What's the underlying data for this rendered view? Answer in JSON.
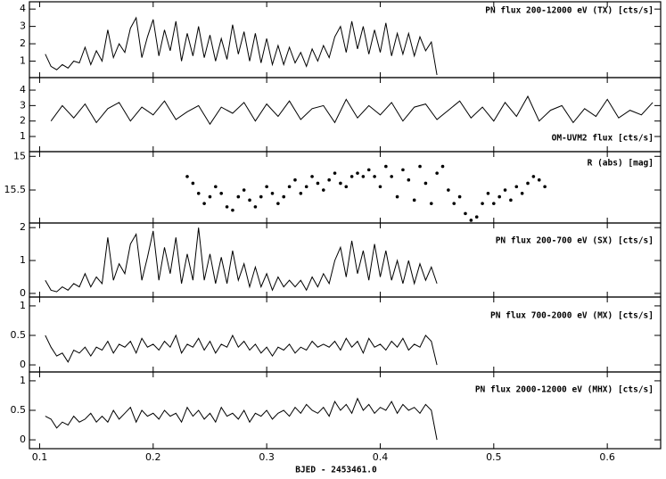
{
  "chart_data": [
    {
      "type": "line",
      "title": "PN flux 200-12000 eV (TX) [cts/s]",
      "color": "#000000",
      "xlim": [
        0.091,
        0.647
      ],
      "ylim": [
        0.05,
        4.42
      ],
      "yticks": [
        1,
        2,
        3,
        4
      ],
      "x": [
        0.105,
        0.11,
        0.115,
        0.12,
        0.125,
        0.13,
        0.135,
        0.14,
        0.145,
        0.15,
        0.155,
        0.16,
        0.165,
        0.17,
        0.175,
        0.18,
        0.185,
        0.19,
        0.195,
        0.2,
        0.205,
        0.21,
        0.215,
        0.22,
        0.225,
        0.23,
        0.235,
        0.24,
        0.245,
        0.25,
        0.255,
        0.26,
        0.265,
        0.27,
        0.275,
        0.28,
        0.285,
        0.29,
        0.295,
        0.3,
        0.305,
        0.31,
        0.315,
        0.32,
        0.325,
        0.33,
        0.335,
        0.34,
        0.345,
        0.35,
        0.355,
        0.36,
        0.365,
        0.37,
        0.375,
        0.38,
        0.385,
        0.39,
        0.395,
        0.4,
        0.405,
        0.41,
        0.415,
        0.42,
        0.425,
        0.43,
        0.435,
        0.44,
        0.445,
        0.45
      ],
      "values": [
        1.4,
        0.7,
        0.5,
        0.8,
        0.6,
        1.0,
        0.9,
        1.8,
        0.8,
        1.6,
        1.0,
        2.8,
        1.2,
        2.0,
        1.5,
        2.9,
        3.5,
        1.2,
        2.4,
        3.4,
        1.3,
        2.8,
        1.6,
        3.3,
        1.0,
        2.6,
        1.3,
        3.0,
        1.2,
        2.5,
        1.0,
        2.3,
        1.1,
        3.1,
        1.4,
        2.7,
        1.0,
        2.6,
        0.9,
        2.3,
        0.8,
        1.9,
        0.8,
        1.8,
        0.9,
        1.5,
        0.7,
        1.7,
        1.0,
        1.9,
        1.2,
        2.4,
        3.0,
        1.5,
        3.3,
        1.7,
        3.0,
        1.4,
        2.8,
        1.5,
        3.2,
        1.3,
        2.6,
        1.4,
        2.6,
        1.3,
        2.4,
        1.6,
        2.1,
        0.2
      ]
    },
    {
      "type": "line",
      "title": "OM-UVM2 flux [cts/s]",
      "color": "#000000",
      "xlim": [
        0.091,
        0.647
      ],
      "ylim": [
        0.02,
        4.81
      ],
      "yticks": [
        1,
        2,
        3,
        4
      ],
      "x": [
        0.11,
        0.12,
        0.13,
        0.14,
        0.15,
        0.16,
        0.17,
        0.18,
        0.19,
        0.2,
        0.21,
        0.22,
        0.23,
        0.24,
        0.25,
        0.26,
        0.27,
        0.28,
        0.29,
        0.3,
        0.31,
        0.32,
        0.33,
        0.34,
        0.35,
        0.36,
        0.37,
        0.38,
        0.39,
        0.4,
        0.41,
        0.42,
        0.43,
        0.44,
        0.45,
        0.46,
        0.47,
        0.48,
        0.49,
        0.5,
        0.51,
        0.52,
        0.53,
        0.54,
        0.55,
        0.56,
        0.57,
        0.58,
        0.59,
        0.6,
        0.61,
        0.62,
        0.63,
        0.64
      ],
      "values": [
        2.0,
        3.0,
        2.2,
        3.1,
        1.9,
        2.8,
        3.2,
        2.0,
        2.9,
        2.4,
        3.3,
        2.1,
        2.6,
        3.0,
        1.8,
        2.9,
        2.5,
        3.2,
        2.0,
        3.1,
        2.3,
        3.3,
        2.1,
        2.8,
        3.0,
        1.9,
        3.4,
        2.2,
        3.0,
        2.4,
        3.2,
        2.0,
        2.9,
        3.1,
        2.1,
        2.7,
        3.3,
        2.2,
        2.9,
        2.0,
        3.2,
        2.3,
        3.6,
        2.0,
        2.7,
        3.0,
        1.9,
        2.8,
        2.3,
        3.4,
        2.2,
        2.7,
        2.4,
        3.2
      ]
    },
    {
      "type": "scatter",
      "title": "R (abs) [mag]",
      "color": "#000000",
      "xlim": [
        0.091,
        0.647
      ],
      "ylim": [
        15.99,
        14.93
      ],
      "yticks": [
        15,
        15.5
      ],
      "x": [
        0.23,
        0.235,
        0.24,
        0.245,
        0.25,
        0.255,
        0.26,
        0.265,
        0.27,
        0.275,
        0.28,
        0.285,
        0.29,
        0.295,
        0.3,
        0.305,
        0.31,
        0.315,
        0.32,
        0.325,
        0.33,
        0.335,
        0.34,
        0.345,
        0.35,
        0.355,
        0.36,
        0.365,
        0.37,
        0.375,
        0.38,
        0.385,
        0.39,
        0.395,
        0.4,
        0.405,
        0.41,
        0.415,
        0.42,
        0.425,
        0.43,
        0.435,
        0.44,
        0.445,
        0.45,
        0.455,
        0.46,
        0.465,
        0.47,
        0.475,
        0.48,
        0.485,
        0.49,
        0.495,
        0.5,
        0.505,
        0.51,
        0.515,
        0.52,
        0.525,
        0.53,
        0.535,
        0.54,
        0.545
      ],
      "values": [
        15.3,
        15.4,
        15.55,
        15.7,
        15.6,
        15.45,
        15.55,
        15.75,
        15.8,
        15.6,
        15.5,
        15.65,
        15.75,
        15.6,
        15.45,
        15.55,
        15.7,
        15.6,
        15.45,
        15.35,
        15.55,
        15.45,
        15.3,
        15.4,
        15.5,
        15.35,
        15.25,
        15.4,
        15.45,
        15.3,
        15.25,
        15.3,
        15.2,
        15.3,
        15.45,
        15.15,
        15.3,
        15.6,
        15.2,
        15.35,
        15.65,
        15.15,
        15.4,
        15.7,
        15.25,
        15.15,
        15.5,
        15.7,
        15.6,
        15.85,
        15.95,
        15.9,
        15.7,
        15.55,
        15.7,
        15.6,
        15.5,
        15.65,
        15.45,
        15.55,
        15.4,
        15.3,
        15.35,
        15.45
      ]
    },
    {
      "type": "line",
      "title": "PN flux 200-700 eV (SX) [cts/s]",
      "color": "#000000",
      "xlim": [
        0.091,
        0.647
      ],
      "ylim": [
        -0.11,
        2.14
      ],
      "yticks": [
        0,
        1,
        2
      ],
      "x": [
        0.105,
        0.11,
        0.115,
        0.12,
        0.125,
        0.13,
        0.135,
        0.14,
        0.145,
        0.15,
        0.155,
        0.16,
        0.165,
        0.17,
        0.175,
        0.18,
        0.185,
        0.19,
        0.195,
        0.2,
        0.205,
        0.21,
        0.215,
        0.22,
        0.225,
        0.23,
        0.235,
        0.24,
        0.245,
        0.25,
        0.255,
        0.26,
        0.265,
        0.27,
        0.275,
        0.28,
        0.285,
        0.29,
        0.295,
        0.3,
        0.305,
        0.31,
        0.315,
        0.32,
        0.325,
        0.33,
        0.335,
        0.34,
        0.345,
        0.35,
        0.355,
        0.36,
        0.365,
        0.37,
        0.375,
        0.38,
        0.385,
        0.39,
        0.395,
        0.4,
        0.405,
        0.41,
        0.415,
        0.42,
        0.425,
        0.43,
        0.435,
        0.44,
        0.445,
        0.45
      ],
      "values": [
        0.4,
        0.1,
        0.05,
        0.2,
        0.1,
        0.3,
        0.2,
        0.6,
        0.2,
        0.5,
        0.3,
        1.7,
        0.4,
        0.9,
        0.6,
        1.5,
        1.8,
        0.4,
        1.1,
        1.9,
        0.4,
        1.4,
        0.6,
        1.7,
        0.3,
        1.2,
        0.4,
        2.0,
        0.4,
        1.2,
        0.3,
        1.1,
        0.3,
        1.3,
        0.4,
        0.9,
        0.2,
        0.8,
        0.2,
        0.6,
        0.1,
        0.5,
        0.2,
        0.4,
        0.2,
        0.4,
        0.1,
        0.5,
        0.2,
        0.6,
        0.3,
        1.0,
        1.4,
        0.5,
        1.6,
        0.6,
        1.3,
        0.4,
        1.5,
        0.5,
        1.3,
        0.4,
        1.0,
        0.3,
        1.0,
        0.3,
        0.9,
        0.4,
        0.8,
        0.3
      ]
    },
    {
      "type": "line",
      "title": "PN flux 700-2000 eV (MX) [cts/s]",
      "color": "#000000",
      "xlim": [
        0.091,
        0.647
      ],
      "ylim": [
        -0.12,
        1.15
      ],
      "yticks": [
        0,
        0.5,
        1
      ],
      "x": [
        0.105,
        0.11,
        0.115,
        0.12,
        0.125,
        0.13,
        0.135,
        0.14,
        0.145,
        0.15,
        0.155,
        0.16,
        0.165,
        0.17,
        0.175,
        0.18,
        0.185,
        0.19,
        0.195,
        0.2,
        0.205,
        0.21,
        0.215,
        0.22,
        0.225,
        0.23,
        0.235,
        0.24,
        0.245,
        0.25,
        0.255,
        0.26,
        0.265,
        0.27,
        0.275,
        0.28,
        0.285,
        0.29,
        0.295,
        0.3,
        0.305,
        0.31,
        0.315,
        0.32,
        0.325,
        0.33,
        0.335,
        0.34,
        0.345,
        0.35,
        0.355,
        0.36,
        0.365,
        0.37,
        0.375,
        0.38,
        0.385,
        0.39,
        0.395,
        0.4,
        0.405,
        0.41,
        0.415,
        0.42,
        0.425,
        0.43,
        0.435,
        0.44,
        0.445,
        0.45
      ],
      "values": [
        0.5,
        0.3,
        0.15,
        0.2,
        0.05,
        0.25,
        0.2,
        0.3,
        0.15,
        0.3,
        0.25,
        0.4,
        0.2,
        0.35,
        0.3,
        0.4,
        0.2,
        0.45,
        0.3,
        0.35,
        0.25,
        0.4,
        0.3,
        0.5,
        0.2,
        0.35,
        0.3,
        0.45,
        0.25,
        0.4,
        0.2,
        0.35,
        0.3,
        0.5,
        0.3,
        0.4,
        0.25,
        0.35,
        0.2,
        0.3,
        0.15,
        0.3,
        0.25,
        0.35,
        0.2,
        0.3,
        0.25,
        0.4,
        0.3,
        0.35,
        0.3,
        0.4,
        0.25,
        0.45,
        0.3,
        0.4,
        0.2,
        0.45,
        0.3,
        0.35,
        0.25,
        0.4,
        0.3,
        0.45,
        0.25,
        0.35,
        0.3,
        0.5,
        0.4,
        0.0
      ]
    },
    {
      "type": "line",
      "title": "PN flux 2000-12000 eV (MHX) [cts/s]",
      "color": "#000000",
      "xlim": [
        0.091,
        0.647
      ],
      "ylim": [
        -0.15,
        1.15
      ],
      "yticks": [
        0,
        0.5,
        1
      ],
      "xlabel": "BJED - 2453461.0",
      "xticks": [
        0.1,
        0.2,
        0.3,
        0.4,
        0.5,
        0.6
      ],
      "x": [
        0.105,
        0.11,
        0.115,
        0.12,
        0.125,
        0.13,
        0.135,
        0.14,
        0.145,
        0.15,
        0.155,
        0.16,
        0.165,
        0.17,
        0.175,
        0.18,
        0.185,
        0.19,
        0.195,
        0.2,
        0.205,
        0.21,
        0.215,
        0.22,
        0.225,
        0.23,
        0.235,
        0.24,
        0.245,
        0.25,
        0.255,
        0.26,
        0.265,
        0.27,
        0.275,
        0.28,
        0.285,
        0.29,
        0.295,
        0.3,
        0.305,
        0.31,
        0.315,
        0.32,
        0.325,
        0.33,
        0.335,
        0.34,
        0.345,
        0.35,
        0.355,
        0.36,
        0.365,
        0.37,
        0.375,
        0.38,
        0.385,
        0.39,
        0.395,
        0.4,
        0.405,
        0.41,
        0.415,
        0.42,
        0.425,
        0.43,
        0.435,
        0.44,
        0.445,
        0.45
      ],
      "values": [
        0.4,
        0.35,
        0.2,
        0.3,
        0.25,
        0.4,
        0.3,
        0.35,
        0.45,
        0.3,
        0.4,
        0.3,
        0.5,
        0.35,
        0.45,
        0.55,
        0.3,
        0.5,
        0.4,
        0.45,
        0.35,
        0.5,
        0.4,
        0.45,
        0.3,
        0.55,
        0.4,
        0.5,
        0.35,
        0.45,
        0.3,
        0.55,
        0.4,
        0.45,
        0.35,
        0.5,
        0.3,
        0.45,
        0.4,
        0.5,
        0.35,
        0.45,
        0.5,
        0.4,
        0.55,
        0.45,
        0.6,
        0.5,
        0.45,
        0.55,
        0.4,
        0.65,
        0.5,
        0.6,
        0.45,
        0.7,
        0.5,
        0.6,
        0.45,
        0.55,
        0.5,
        0.65,
        0.45,
        0.6,
        0.5,
        0.55,
        0.45,
        0.6,
        0.5,
        0.0
      ]
    }
  ]
}
